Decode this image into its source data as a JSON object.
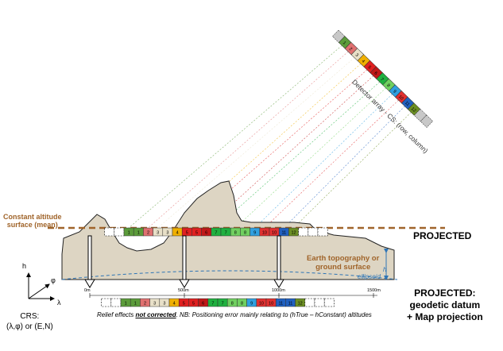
{
  "detector": {
    "label": "Detector array - CS: (row, column)",
    "cells": [
      {
        "n": "",
        "color": "#c8c8c8"
      },
      {
        "n": "1",
        "color": "#5b9b3a"
      },
      {
        "n": "2",
        "color": "#e07070"
      },
      {
        "n": "3",
        "color": "#e8e0c8"
      },
      {
        "n": "4",
        "color": "#f0b000"
      },
      {
        "n": "5",
        "color": "#e02020"
      },
      {
        "n": "6",
        "color": "#c01818"
      },
      {
        "n": "7",
        "color": "#20b040"
      },
      {
        "n": "8",
        "color": "#70d060"
      },
      {
        "n": "9",
        "color": "#30a0e0"
      },
      {
        "n": "10",
        "color": "#e03030"
      },
      {
        "n": "11",
        "color": "#2060c0"
      },
      {
        "n": "12",
        "color": "#6b8e23"
      },
      {
        "n": "",
        "color": "#c8c8c8"
      },
      {
        "n": "",
        "color": "#c8c8c8"
      }
    ]
  },
  "ground_row": [
    {
      "n": "1",
      "color": "#5b9b3a"
    },
    {
      "n": "1",
      "color": "#5b9b3a"
    },
    {
      "n": "2",
      "color": "#e07070"
    },
    {
      "n": "3",
      "color": "#e8e0c8"
    },
    {
      "n": "3",
      "color": "#e8e0c8"
    },
    {
      "n": "4",
      "color": "#f0b000"
    },
    {
      "n": "5",
      "color": "#e02020"
    },
    {
      "n": "5",
      "color": "#e02020"
    },
    {
      "n": "6",
      "color": "#c01818"
    },
    {
      "n": "7",
      "color": "#20b040"
    },
    {
      "n": "7",
      "color": "#20b040"
    },
    {
      "n": "8",
      "color": "#70d060"
    },
    {
      "n": "8",
      "color": "#70d060"
    },
    {
      "n": "9",
      "color": "#30a0e0"
    },
    {
      "n": "10",
      "color": "#e03030"
    },
    {
      "n": "10",
      "color": "#e03030"
    },
    {
      "n": "11",
      "color": "#2060c0"
    },
    {
      "n": "12",
      "color": "#6b8e23"
    }
  ],
  "map_row": [
    {
      "n": "1",
      "color": "#5b9b3a"
    },
    {
      "n": "1",
      "color": "#5b9b3a"
    },
    {
      "n": "2",
      "color": "#e07070"
    },
    {
      "n": "3",
      "color": "#e8e0c8"
    },
    {
      "n": "3",
      "color": "#e8e0c8"
    },
    {
      "n": "4",
      "color": "#f0b000"
    },
    {
      "n": "5",
      "color": "#e02020"
    },
    {
      "n": "5",
      "color": "#e02020"
    },
    {
      "n": "6",
      "color": "#c01818"
    },
    {
      "n": "7",
      "color": "#20b040"
    },
    {
      "n": "7",
      "color": "#20b040"
    },
    {
      "n": "8",
      "color": "#70d060"
    },
    {
      "n": "8",
      "color": "#70d060"
    },
    {
      "n": "9",
      "color": "#30a0e0"
    },
    {
      "n": "10",
      "color": "#e03030"
    },
    {
      "n": "10",
      "color": "#e03030"
    },
    {
      "n": "11",
      "color": "#2060c0"
    },
    {
      "n": "11",
      "color": "#2060c0"
    },
    {
      "n": "12",
      "color": "#6b8e23"
    }
  ],
  "labels": {
    "constant_altitude_line1": "Constant altitude",
    "constant_altitude_line2": "surface (mean)",
    "earth_line1": "Earth topography or",
    "earth_line2": "ground surface",
    "ellipsoid": "ellipsoid",
    "h_right": "h",
    "projected": "PROJECTED",
    "projected2_line1": "PROJECTED:",
    "projected2_line2": "geodetic datum",
    "projected2_line3": "+ Map projection",
    "crs_line1": "CRS:",
    "crs_line2": "(λ,φ) or (E,N)",
    "axis_h": "h",
    "axis_phi": "φ",
    "axis_lambda": "λ",
    "tick_0": "0m",
    "tick_500": "500m",
    "tick_1000": "1000m",
    "tick_1500": "1500m",
    "note_bold": "not corrected",
    "note_pre": "Relief effects ",
    "note_post": ". NB: Positioning error mainly relating to (hTrue – hConstant) altitudes"
  },
  "colors": {
    "terrain_fill": "#ddd5c3",
    "terrain_stroke": "#222222",
    "constant_line": "#a0642a",
    "ellipsoid": "#2e75b6"
  }
}
